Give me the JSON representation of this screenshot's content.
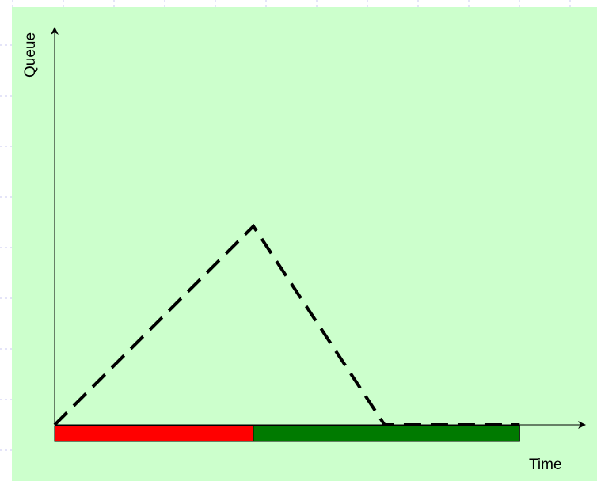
{
  "diagram": {
    "x_axis_label": "Time",
    "y_axis_label": "Queue",
    "queue_curve": {
      "style": "dashed",
      "points": [
        {
          "t": 0,
          "q": 0
        },
        {
          "t": 1,
          "q": 1
        },
        {
          "t": 1.66,
          "q": 0
        },
        {
          "t": 2.34,
          "q": 0
        }
      ]
    },
    "phases": [
      {
        "name": "red",
        "start": 0,
        "end": 1,
        "color": "#ff0000"
      },
      {
        "name": "green",
        "start": 1,
        "end": 2.34,
        "color": "#007a00"
      }
    ]
  },
  "colors": {
    "panel_background": "#ccffcc",
    "page_background": "#ffffff",
    "grid_lines": "#c8c8f0",
    "axis": "#000000",
    "curve": "#000000"
  }
}
